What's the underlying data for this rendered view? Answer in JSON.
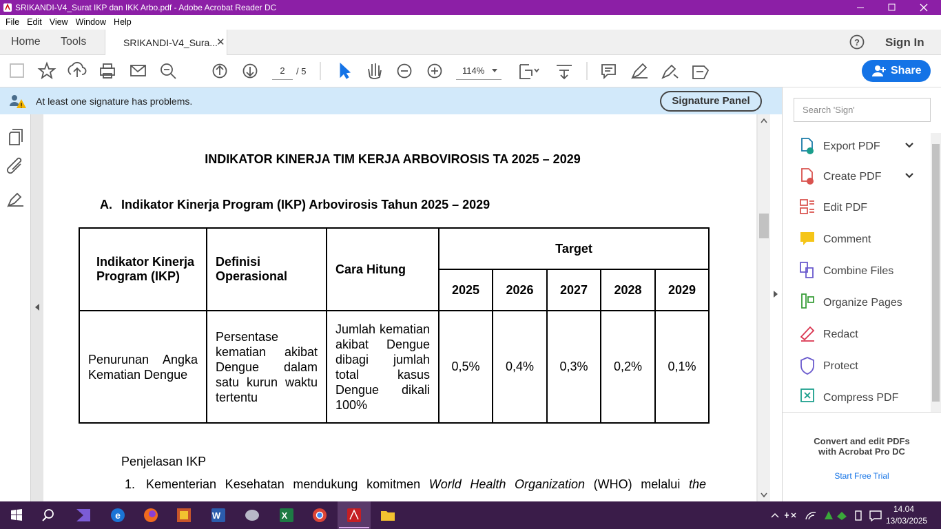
{
  "window": {
    "title": "SRIKANDI-V4_Surat IKP dan IKK Arbo.pdf - Adobe Acrobat Reader DC"
  },
  "menu": [
    "File",
    "Edit",
    "View",
    "Window",
    "Help"
  ],
  "tabs": {
    "home": "Home",
    "tools": "Tools",
    "document": "SRIKANDI-V4_Sura...",
    "sign_in": "Sign In"
  },
  "toolbar": {
    "page": "2",
    "page_count": "/ 5",
    "zoom": "114%",
    "share": "Share"
  },
  "banner": {
    "message": "At least one signature has problems.",
    "button": "Signature Panel"
  },
  "document": {
    "title": "INDIKATOR KINERJA TIM KERJA ARBOVIROSIS TA 2025 – 2029",
    "section": "A.",
    "section_title": "Indikator Kinerja Program (IKP) Arbovirosis Tahun 2025 – 2029",
    "table": {
      "headers": [
        "Indikator Kinerja Program (IKP)",
        "Definisi Operasional",
        "Cara Hitung"
      ],
      "target": "Target",
      "years": [
        "2025",
        "2026",
        "2027",
        "2028",
        "2029"
      ],
      "rows": [
        [
          "Penurunan Angka Kematian Dengue",
          "Persentase kematian akibat Dengue dalam satu kurun waktu tertentu",
          "Jumlah kematian akibat Dengue dibagi jumlah total kasus Dengue dikali 100%",
          "0,5%",
          "0,4%",
          "0,3%",
          "0,2%",
          "0,1%"
        ]
      ]
    },
    "explanation_title": "Penjelasan IKP",
    "item_number": "1.",
    "item_text": [
      "Kementerian Kesehatan mendukung komitmen ",
      "World Health Organization",
      " (WHO) melalui ",
      "the"
    ]
  },
  "side_panel": {
    "search_placeholder": "Search 'Sign'",
    "tools": [
      "Export PDF",
      "Create PDF",
      "Edit PDF",
      "Comment",
      "Combine Files",
      "Organize Pages",
      "Redact",
      "Protect",
      "Compress PDF"
    ],
    "promo": [
      "Convert and edit PDFs",
      "with Acrobat Pro DC"
    ],
    "trial": "Start Free Trial"
  },
  "taskbar": {
    "time": "14.04",
    "date": "13/03/2025"
  }
}
